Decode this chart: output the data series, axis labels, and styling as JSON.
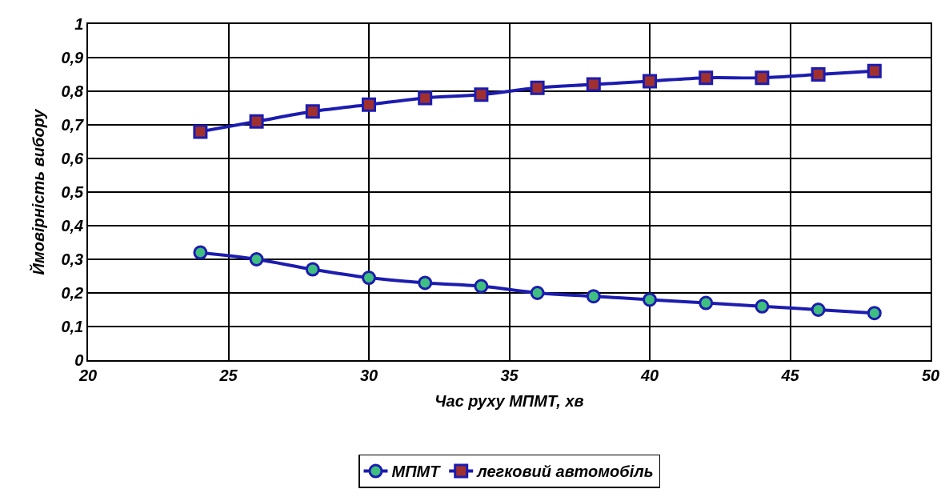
{
  "chart_data": {
    "type": "line",
    "xlabel": "Час руху МПМТ, хв",
    "ylabel": "Ймовірність вибору",
    "x": [
      24,
      26,
      28,
      30,
      32,
      34,
      36,
      38,
      40,
      42,
      44,
      46,
      48
    ],
    "series": [
      {
        "name": "МПМТ",
        "color": "#1c1cb0",
        "marker": "circle",
        "values": [
          0.32,
          0.3,
          0.27,
          0.245,
          0.23,
          0.22,
          0.2,
          0.19,
          0.18,
          0.17,
          0.16,
          0.15,
          0.14
        ]
      },
      {
        "name": "легковий автомобіль",
        "color": "#1c1cb0",
        "marker": "square",
        "values": [
          0.68,
          0.71,
          0.74,
          0.76,
          0.78,
          0.79,
          0.81,
          0.82,
          0.83,
          0.84,
          0.84,
          0.85,
          0.86
        ]
      }
    ],
    "xlim": [
      20,
      50
    ],
    "xticks": [
      20,
      25,
      30,
      35,
      40,
      45,
      50
    ],
    "ylim": [
      0,
      1
    ],
    "yticks": [
      0,
      {
        "value": 0.1,
        "label": "0,1"
      },
      {
        "value": 0.2,
        "label": "0,2"
      },
      {
        "value": 0.3,
        "label": "0,3"
      },
      {
        "value": 0.4,
        "label": "0,4"
      },
      {
        "value": 0.5,
        "label": "0,5"
      },
      {
        "value": 0.6,
        "label": "0,6"
      },
      {
        "value": 0.7,
        "label": "0,7"
      },
      {
        "value": 0.8,
        "label": "0,8"
      },
      {
        "value": 0.9,
        "label": "0,9"
      },
      1
    ],
    "grid": true,
    "legend": "bottom",
    "line_style": "solid"
  }
}
